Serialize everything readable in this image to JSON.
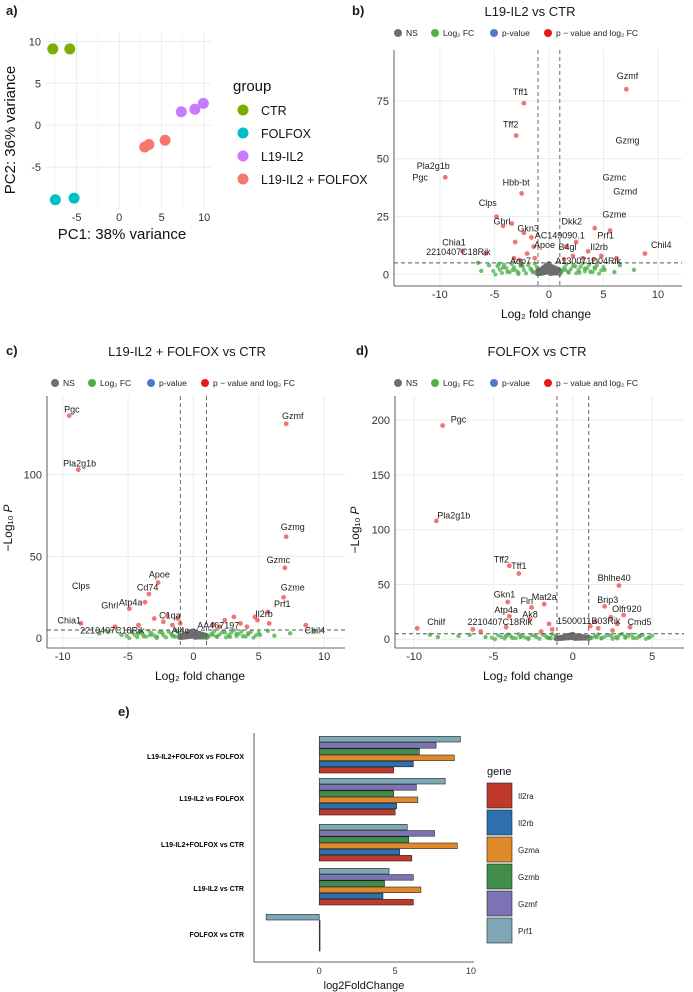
{
  "panel_letters": {
    "a": "a)",
    "b": "b)",
    "c": "c)",
    "d": "d)",
    "e": "e)"
  },
  "palette": {
    "CTR": "#7cae00",
    "FOLFOX": "#00bfc4",
    "L19-IL2": "#c77cff",
    "L19-IL2 + FOLFOX": "#f8766d",
    "NS": "#6e6e6e",
    "Log2FC": "#4daf4a",
    "pvalue": "#4d79d1",
    "both": "#e41a1c"
  },
  "volcano_legend": {
    "ns": "NS",
    "fc": "Log₂ FC",
    "pv": "p-value",
    "both": "p − value and log₂ FC"
  },
  "volcano_axes": {
    "xlabel": "Log₂ fold change",
    "ylabel_prefix": "−Log₁₀",
    "ylabel_p": "P"
  },
  "chart_data": [
    {
      "id": "a",
      "type": "scatter",
      "title": "",
      "xlabel": "PC1: 38% variance",
      "ylabel": "PC2: 36% variance",
      "xlim": [
        -8.6,
        10.8
      ],
      "ylim": [
        -10,
        11
      ],
      "xticks": [
        -5,
        0,
        5,
        10
      ],
      "yticks": [
        -5,
        0,
        5,
        10
      ],
      "legend_title": "group",
      "groups": [
        {
          "name": "CTR",
          "points": [
            [
              -7.8,
              9.1
            ],
            [
              -5.8,
              9.1
            ]
          ]
        },
        {
          "name": "FOLFOX",
          "points": [
            [
              -7.5,
              -8.9
            ],
            [
              -5.3,
              -8.7
            ]
          ]
        },
        {
          "name": "L19-IL2",
          "points": [
            [
              7.3,
              1.6
            ],
            [
              8.9,
              1.9
            ],
            [
              9.9,
              2.6
            ]
          ]
        },
        {
          "name": "L19-IL2 + FOLFOX",
          "points": [
            [
              3.0,
              -2.6
            ],
            [
              3.5,
              -2.3
            ],
            [
              5.4,
              -1.8
            ]
          ]
        }
      ]
    },
    {
      "id": "b",
      "type": "scatter",
      "title": "L19-IL2 vs CTR",
      "xlim": [
        -14.2,
        12.2
      ],
      "ylim": [
        -5,
        97
      ],
      "xticks": [
        -10,
        -5,
        0,
        5,
        10
      ],
      "yticks": [
        0,
        25,
        50,
        75
      ],
      "fc_cutoff": 1,
      "p_cutoff_y": 5,
      "labels": [
        {
          "text": "Gzmf",
          "x": 7.2,
          "y": 84.5
        },
        {
          "text": "Tff1",
          "x": -2.6,
          "y": 77.5
        },
        {
          "text": "Tff2",
          "x": -3.5,
          "y": 63.5
        },
        {
          "text": "Gzmg",
          "x": 7.2,
          "y": 56.5
        },
        {
          "text": "Pla2g1b",
          "x": -10.6,
          "y": 45.5
        },
        {
          "text": "Pgc",
          "x": -11.8,
          "y": 40.5
        },
        {
          "text": "Hbb-bt",
          "x": -3.0,
          "y": 38.5
        },
        {
          "text": "Gzmc",
          "x": 6.0,
          "y": 40.5
        },
        {
          "text": "Gzmd",
          "x": 7.0,
          "y": 34.5
        },
        {
          "text": "Clps",
          "x": -5.6,
          "y": 29.5
        },
        {
          "text": "Gzme",
          "x": 6.0,
          "y": 24.5
        },
        {
          "text": "Ghrl",
          "x": -4.3,
          "y": 21.5
        },
        {
          "text": "Dkk2",
          "x": 2.1,
          "y": 21.5
        },
        {
          "text": "Gkn3",
          "x": -1.9,
          "y": 18.5
        },
        {
          "text": "AC149090.1",
          "x": 1.0,
          "y": 15.5
        },
        {
          "text": "Prf1",
          "x": 5.2,
          "y": 15.5
        },
        {
          "text": "Chil4",
          "x": 10.3,
          "y": 11.5
        },
        {
          "text": "Chia1",
          "x": -8.7,
          "y": 12.5
        },
        {
          "text": "Apoe",
          "x": -0.4,
          "y": 11.5
        },
        {
          "text": "B4gl",
          "x": 1.7,
          "y": 10.5
        },
        {
          "text": "Il2rb",
          "x": 4.6,
          "y": 10.5
        },
        {
          "text": "2210407C18Rik",
          "x": -8.3,
          "y": 8.5
        },
        {
          "text": "Aqp7",
          "x": -2.6,
          "y": 4.5
        },
        {
          "text": "A130071D04Rik",
          "x": 3.6,
          "y": 4.5
        }
      ],
      "sig_points": [
        [
          7.1,
          80
        ],
        [
          -2.3,
          74
        ],
        [
          -3.0,
          60
        ],
        [
          -9.5,
          42
        ],
        [
          -2.5,
          35
        ],
        [
          -4.8,
          25
        ],
        [
          -4.2,
          21
        ],
        [
          -3.4,
          22
        ],
        [
          -2.3,
          18
        ],
        [
          -1.6,
          16
        ],
        [
          4.2,
          20
        ],
        [
          5.6,
          19
        ],
        [
          -1.4,
          12
        ],
        [
          -3.1,
          14
        ],
        [
          2.5,
          14
        ],
        [
          1.6,
          12
        ],
        [
          3.6,
          10
        ],
        [
          -2.0,
          9
        ],
        [
          4.8,
          8
        ],
        [
          6.2,
          7
        ],
        [
          -3.2,
          7
        ],
        [
          -1.3,
          7
        ],
        [
          2.2,
          8
        ],
        [
          3.1,
          7
        ],
        [
          8.8,
          9
        ],
        [
          -7.9,
          10
        ],
        [
          -5.8,
          9
        ],
        [
          1.4,
          6.5
        ],
        [
          -2.7,
          6.2
        ],
        [
          4.1,
          6.4
        ]
      ],
      "fc_points": [
        [
          -5.5,
          4
        ],
        [
          -4.2,
          3
        ],
        [
          -3.3,
          2
        ],
        [
          -2.4,
          3.5
        ],
        [
          -1.6,
          2
        ],
        [
          1.5,
          2
        ],
        [
          2.4,
          3.5
        ],
        [
          3.3,
          2.5
        ],
        [
          4.2,
          3
        ],
        [
          5.1,
          2
        ],
        [
          -6.2,
          1.5
        ],
        [
          6.0,
          1
        ],
        [
          -1.4,
          1
        ],
        [
          1.8,
          1
        ],
        [
          2.8,
          0.8
        ],
        [
          -2.8,
          0.8
        ],
        [
          -3.8,
          1.2
        ],
        [
          3.8,
          1.2
        ],
        [
          -6.5,
          5
        ],
        [
          7.8,
          2
        ],
        [
          6.5,
          4
        ],
        [
          -4.6,
          4.5
        ]
      ]
    },
    {
      "id": "c",
      "type": "scatter",
      "title": "L19-IL2 + FOLFOX vs CTR",
      "xlim": [
        -11.2,
        11.6
      ],
      "ylim": [
        -6,
        148
      ],
      "xticks": [
        -10,
        -5,
        0,
        5,
        10
      ],
      "yticks": [
        0,
        50,
        100
      ],
      "fc_cutoff": 1,
      "p_cutoff_y": 5,
      "labels": [
        {
          "text": "Pgc",
          "x": -9.3,
          "y": 138
        },
        {
          "text": "Gzmf",
          "x": 7.6,
          "y": 134
        },
        {
          "text": "Pla2g1b",
          "x": -8.7,
          "y": 105
        },
        {
          "text": "Gzmg",
          "x": 7.6,
          "y": 66
        },
        {
          "text": "Gzmc",
          "x": 6.5,
          "y": 46
        },
        {
          "text": "Apoe",
          "x": -2.6,
          "y": 37
        },
        {
          "text": "Clps",
          "x": -8.6,
          "y": 30
        },
        {
          "text": "Cd74",
          "x": -3.5,
          "y": 29
        },
        {
          "text": "Gzme",
          "x": 7.6,
          "y": 29
        },
        {
          "text": "Atp4a",
          "x": -4.8,
          "y": 20
        },
        {
          "text": "Prf1",
          "x": 6.8,
          "y": 19
        },
        {
          "text": "Ghrl",
          "x": -6.4,
          "y": 18
        },
        {
          "text": "Il2rb",
          "x": 5.4,
          "y": 13
        },
        {
          "text": "C1qa",
          "x": -1.8,
          "y": 12
        },
        {
          "text": "Chia1",
          "x": -9.5,
          "y": 9
        },
        {
          "text": "AA467197",
          "x": 1.9,
          "y": 6
        },
        {
          "text": "Chil4",
          "x": 9.3,
          "y": 3
        },
        {
          "text": "2210407C18Rik",
          "x": -6.2,
          "y": 3
        },
        {
          "text": "Al4c",
          "x": -1.0,
          "y": 3
        }
      ],
      "sig_points": [
        [
          -9.5,
          136
        ],
        [
          7.1,
          131
        ],
        [
          -8.8,
          103
        ],
        [
          7.1,
          62
        ],
        [
          7.0,
          43
        ],
        [
          -2.7,
          34
        ],
        [
          -3.4,
          27
        ],
        [
          -3.7,
          22
        ],
        [
          -4.9,
          18
        ],
        [
          6.9,
          25
        ],
        [
          5.7,
          16
        ],
        [
          4.7,
          13
        ],
        [
          4.9,
          11
        ],
        [
          -2.0,
          14
        ],
        [
          -1.0,
          9
        ],
        [
          -3.0,
          12
        ],
        [
          2.4,
          11
        ],
        [
          3.6,
          9
        ],
        [
          -8.6,
          9
        ],
        [
          8.6,
          8
        ],
        [
          -6.0,
          7
        ],
        [
          -1.6,
          8
        ],
        [
          2.0,
          7
        ],
        [
          -2.3,
          10
        ],
        [
          3.1,
          13
        ],
        [
          1.5,
          8.5
        ],
        [
          -1.2,
          12
        ],
        [
          5.8,
          9
        ],
        [
          4.1,
          7
        ],
        [
          -4.2,
          8
        ]
      ],
      "fc_points": [
        [
          -6.5,
          4
        ],
        [
          -5.5,
          2
        ],
        [
          -4.2,
          3
        ],
        [
          -3.3,
          2
        ],
        [
          -2.4,
          3.5
        ],
        [
          -1.6,
          1.5
        ],
        [
          1.5,
          2
        ],
        [
          2.4,
          3.5
        ],
        [
          3.3,
          2.5
        ],
        [
          4.2,
          3
        ],
        [
          5.1,
          2
        ],
        [
          6.2,
          1.5
        ],
        [
          7.4,
          3
        ],
        [
          -7.2,
          3
        ],
        [
          -1.4,
          1
        ],
        [
          1.8,
          1
        ],
        [
          2.8,
          0.8
        ],
        [
          -2.8,
          0.8
        ],
        [
          -3.8,
          1.2
        ],
        [
          3.8,
          1.2
        ],
        [
          9.2,
          4
        ],
        [
          5.7,
          4.5
        ]
      ]
    },
    {
      "id": "d",
      "type": "scatter",
      "title": "FOLFOX vs CTR",
      "xlim": [
        -11.2,
        7.0
      ],
      "ylim": [
        -8,
        222
      ],
      "xticks": [
        -10,
        -5,
        0,
        5
      ],
      "yticks": [
        0,
        50,
        100,
        150,
        200
      ],
      "fc_cutoff": 1,
      "p_cutoff_y": 5,
      "labels": [
        {
          "text": "Pgc",
          "x": -7.2,
          "y": 198
        },
        {
          "text": "Pla2g1b",
          "x": -7.5,
          "y": 110
        },
        {
          "text": "Tff2",
          "x": -4.5,
          "y": 70
        },
        {
          "text": "Tff1",
          "x": -3.4,
          "y": 64
        },
        {
          "text": "Bhlhe40",
          "x": 2.6,
          "y": 53
        },
        {
          "text": "Gkn1",
          "x": -4.3,
          "y": 38
        },
        {
          "text": "Mat2a",
          "x": -1.8,
          "y": 36
        },
        {
          "text": "Fln",
          "x": -2.9,
          "y": 32
        },
        {
          "text": "Brip3",
          "x": 2.2,
          "y": 33
        },
        {
          "text": "Olfr920",
          "x": 3.4,
          "y": 25
        },
        {
          "text": "Atp4a",
          "x": -4.2,
          "y": 24
        },
        {
          "text": "Ak8",
          "x": -2.7,
          "y": 20
        },
        {
          "text": "Chilf",
          "x": -8.6,
          "y": 13
        },
        {
          "text": "2210407C18Rik",
          "x": -4.6,
          "y": 13
        },
        {
          "text": "1500011B03Rik",
          "x": 1.0,
          "y": 14
        },
        {
          "text": "Cmd5",
          "x": 4.2,
          "y": 13
        }
      ],
      "sig_points": [
        [
          -8.2,
          195
        ],
        [
          -8.6,
          108
        ],
        [
          -4.0,
          67
        ],
        [
          -3.4,
          60
        ],
        [
          2.9,
          49
        ],
        [
          -4.1,
          34
        ],
        [
          -1.8,
          32
        ],
        [
          -2.6,
          29
        ],
        [
          2.0,
          30
        ],
        [
          3.2,
          22
        ],
        [
          -4.0,
          21
        ],
        [
          -2.7,
          18
        ],
        [
          -9.8,
          10
        ],
        [
          -4.2,
          11
        ],
        [
          1.1,
          12
        ],
        [
          3.6,
          11
        ],
        [
          -1.3,
          9
        ],
        [
          1.6,
          10
        ],
        [
          2.5,
          8
        ],
        [
          -2.0,
          7
        ],
        [
          -5.8,
          7
        ],
        [
          -6.3,
          9
        ],
        [
          1.4,
          16
        ],
        [
          2.4,
          20
        ],
        [
          -1.5,
          14
        ],
        [
          2.8,
          14
        ]
      ],
      "fc_points": [
        [
          -6.5,
          4
        ],
        [
          -5.5,
          2
        ],
        [
          -4.2,
          3
        ],
        [
          -3.3,
          2
        ],
        [
          -2.4,
          3.5
        ],
        [
          -1.6,
          1.5
        ],
        [
          1.5,
          2
        ],
        [
          2.4,
          3.5
        ],
        [
          3.3,
          2.5
        ],
        [
          4.2,
          3
        ],
        [
          4.8,
          1.5
        ],
        [
          -7.2,
          3
        ],
        [
          -1.4,
          1
        ],
        [
          1.8,
          1
        ],
        [
          2.8,
          0.8
        ],
        [
          -2.8,
          0.8
        ],
        [
          -3.8,
          1.2
        ],
        [
          3.8,
          1.2
        ],
        [
          -8.5,
          2
        ],
        [
          -9.0,
          4
        ]
      ]
    },
    {
      "id": "e",
      "type": "bar",
      "title": "",
      "xlabel": "log2FoldChange",
      "xlim": [
        -4.3,
        10.2
      ],
      "xticks": [
        0,
        5,
        10
      ],
      "legend_title": "gene",
      "genes": [
        "Il2ra",
        "Il2rb",
        "Gzma",
        "Gzmb",
        "Gzmf",
        "Prf1"
      ],
      "gene_colors": [
        "#c0392b",
        "#2e6fad",
        "#e0892a",
        "#3f8f4a",
        "#7b73b3",
        "#7fa7b5"
      ],
      "comparisons": [
        {
          "name": "L19-IL2+FOLFOX vs FOLFOX",
          "values": [
            4.9,
            6.2,
            8.9,
            6.6,
            7.7,
            9.3
          ]
        },
        {
          "name": "L19-IL2 vs FOLFOX",
          "values": [
            5.0,
            5.1,
            6.5,
            4.9,
            6.4,
            8.3
          ]
        },
        {
          "name": "L19-IL2+FOLFOX vs CTR",
          "values": [
            6.1,
            5.3,
            9.1,
            5.9,
            7.6,
            5.8
          ]
        },
        {
          "name": "L19-IL2 vs CTR",
          "values": [
            6.2,
            4.2,
            6.7,
            4.3,
            6.2,
            4.6
          ]
        },
        {
          "name": "FOLFOX vs CTR",
          "values": [
            0.02,
            0.02,
            0.02,
            0.02,
            0.03,
            -3.5
          ]
        }
      ]
    }
  ]
}
